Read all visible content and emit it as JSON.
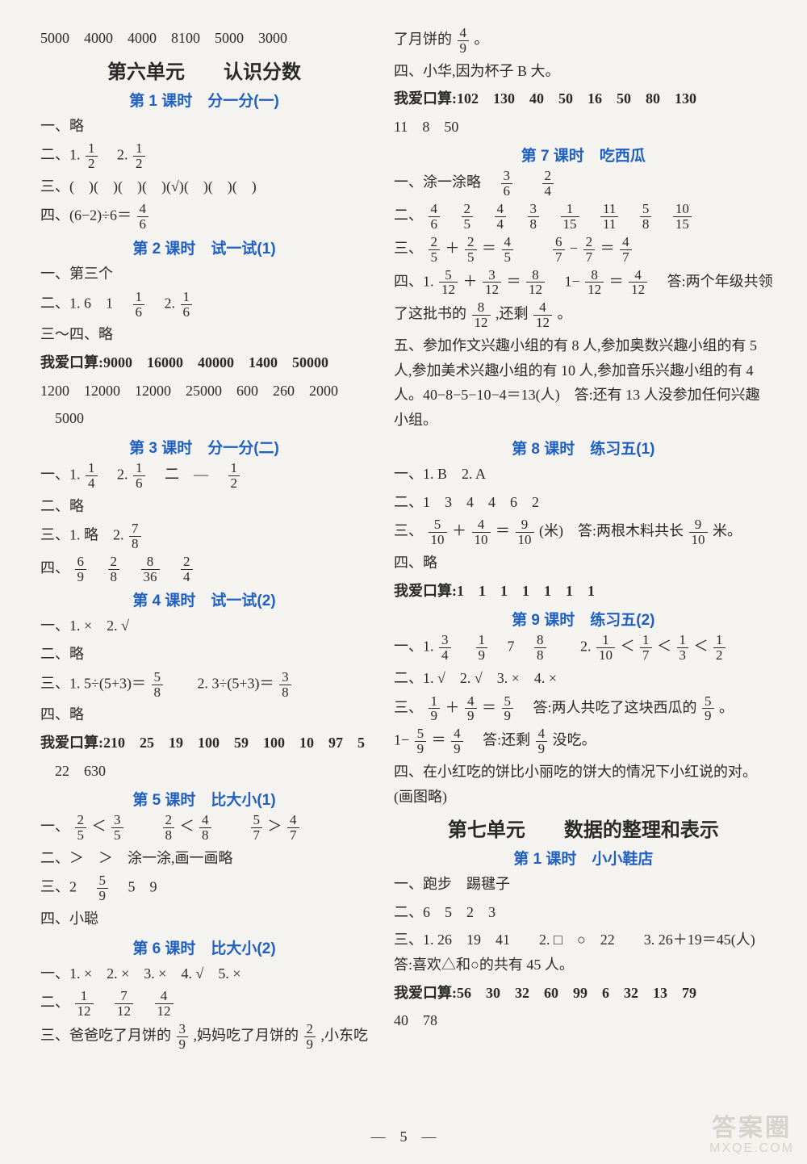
{
  "left": {
    "topRow": "5000　4000　4000　8100　5000　3000",
    "unit6": "第六单元　　认识分数",
    "l1": {
      "title": "第 1 课时　分一分(一)",
      "r1": "一、略",
      "r2_pre": "二、1. ",
      "r2_f1n": "1",
      "r2_f1d": "2",
      "r2_mid": "　2. ",
      "r2_f2n": "1",
      "r2_f2d": "2",
      "r3": "三、(　)(　)(　)(　)(√)(　)(　)(　)",
      "r4_pre": "四、(6−2)÷6＝",
      "r4_fn": "4",
      "r4_fd": "6"
    },
    "l2": {
      "title": "第 2 课时　试一试(1)",
      "r1": "一、第三个",
      "r2_pre": "二、1. 6　1　",
      "r2_f1n": "1",
      "r2_f1d": "6",
      "r2_mid": "　2. ",
      "r2_f2n": "1",
      "r2_f2d": "6",
      "r3": "三～四、略",
      "r4": "我爱口算:9000　16000　40000　1400　50000",
      "r5": "1200　12000　12000　25000　600　260　2000",
      "r6": "　5000"
    },
    "l3": {
      "title": "第 3 课时　分一分(二)",
      "r1_pre": "一、1. ",
      "r1_f1n": "1",
      "r1_f1d": "4",
      "r1_a": "　2. ",
      "r1_f2n": "1",
      "r1_f2d": "6",
      "r1_b": "　二　—　",
      "r1_f3n": "1",
      "r1_f3d": "2",
      "r2": "二、略",
      "r3_pre": "三、1. 略　2. ",
      "r3_fn": "7",
      "r3_fd": "8",
      "r4_pre": "四、",
      "r4_f1n": "6",
      "r4_f1d": "9",
      "r4_f2n": "2",
      "r4_f2d": "8",
      "r4_f3n": "8",
      "r4_f3d": "36",
      "r4_f4n": "2",
      "r4_f4d": "4"
    },
    "l4": {
      "title": "第 4 课时　试一试(2)",
      "r1": "一、1. ×　2. √",
      "r2": "二、略",
      "r3_pre": "三、1. 5÷(5+3)＝",
      "r3_f1n": "5",
      "r3_f1d": "8",
      "r3_mid": "　　2. 3÷(5+3)＝",
      "r3_f2n": "3",
      "r3_f2d": "8",
      "r4": "四、略",
      "r5": "我爱口算:210　25　19　100　59　100　10　97　5",
      "r6": "　22　630"
    },
    "l5": {
      "title": "第 5 课时　比大小(1)",
      "r1_pre": "一、",
      "r1_f1n": "2",
      "r1_f1d": "5",
      "r1_a": "＜",
      "r1_f2n": "3",
      "r1_f2d": "5",
      "r1_b": "　　",
      "r1_f3n": "2",
      "r1_f3d": "8",
      "r1_c": "＜",
      "r1_f4n": "4",
      "r1_f4d": "8",
      "r1_dd": "　　",
      "r1_f5n": "5",
      "r1_f5d": "7",
      "r1_e": "＞",
      "r1_f6n": "4",
      "r1_f6d": "7",
      "r2": "二、＞　＞　涂一涂,画一画略",
      "r3_pre": "三、2　",
      "r3_fn": "5",
      "r3_fd": "9",
      "r3_post": "　5　9",
      "r4": "四、小聪"
    },
    "l6": {
      "title": "第 6 课时　比大小(2)",
      "r1": "一、1. ×　2. ×　3. ×　4. √　5. ×",
      "r2_pre": "二、",
      "r2_f1n": "1",
      "r2_f1d": "12",
      "r2_f2n": "7",
      "r2_f2d": "12",
      "r2_f3n": "4",
      "r2_f3d": "12",
      "r3_pre": "三、爸爸吃了月饼的",
      "r3_f1n": "3",
      "r3_f1d": "9",
      "r3_mid": ",妈妈吃了月饼的",
      "r3_f2n": "2",
      "r3_f2d": "9",
      "r3_post": ",小东吃"
    }
  },
  "right": {
    "cont_pre": "了月饼的",
    "cont_fn": "4",
    "cont_fd": "9",
    "cont_post": "。",
    "r4": "四、小华,因为杯子 B 大。",
    "r5": "我爱口算:102　130　40　50　16　50　80　130",
    "r6": "11　8　50",
    "l7": {
      "title": "第 7 课时　吃西瓜",
      "r1_pre": "一、涂一涂略　",
      "r1_f1n": "3",
      "r1_f1d": "6",
      "r1_f2n": "2",
      "r1_f2d": "4",
      "r2_pre": "二、",
      "f": [
        [
          "4",
          "6"
        ],
        [
          "2",
          "5"
        ],
        [
          "4",
          "4"
        ],
        [
          "3",
          "8"
        ],
        [
          "1",
          "15"
        ],
        [
          "11",
          "11"
        ],
        [
          "5",
          "8"
        ],
        [
          "10",
          "15"
        ]
      ],
      "r3_pre": "三、",
      "r3_f1n": "2",
      "r3_f1d": "5",
      "r3_a": "＋",
      "r3_f2n": "2",
      "r3_f2d": "5",
      "r3_b": "＝",
      "r3_f3n": "4",
      "r3_f3d": "5",
      "r3_c": "　　",
      "r3_f4n": "6",
      "r3_f4d": "7",
      "r3_dlab": "−",
      "r3_f5n": "2",
      "r3_f5d": "7",
      "r3_e": "＝",
      "r3_f6n": "4",
      "r3_f6d": "7",
      "r4_pre": "四、1. ",
      "r4_f1n": "5",
      "r4_f1d": "12",
      "r4_a": "＋",
      "r4_f2n": "3",
      "r4_f2d": "12",
      "r4_b": "＝",
      "r4_f3n": "8",
      "r4_f3d": "12",
      "r4_c": "　1−",
      "r4_f4n": "8",
      "r4_f4d": "12",
      "r4_dlab": "＝",
      "r4_f5n": "4",
      "r4_f5d": "12",
      "r4_post": "　答:两个年级共领",
      "r5_pre": "了这批书的",
      "r5_f1n": "8",
      "r5_f1d": "12",
      "r5_mid": ",还剩",
      "r5_f2n": "4",
      "r5_f2d": "12",
      "r5_post": "。",
      "r6": "五、参加作文兴趣小组的有 8 人,参加奥数兴趣小组的有 5 人,参加美术兴趣小组的有 10 人,参加音乐兴趣小组的有 4 人。40−8−5−10−4＝13(人)　答:还有 13 人没参加任何兴趣小组。"
    },
    "l8": {
      "title": "第 8 课时　练习五(1)",
      "r1": "一、1. B　2. A",
      "r2": "二、1　3　4　4　6　2",
      "r3_pre": "三、",
      "r3_f1n": "5",
      "r3_f1d": "10",
      "r3_a": "＋",
      "r3_f2n": "4",
      "r3_f2d": "10",
      "r3_b": "＝",
      "r3_f3n": "9",
      "r3_f3d": "10",
      "r3_mid": "(米)　答:两根木料共长",
      "r3_f4n": "9",
      "r3_f4d": "10",
      "r3_post": "米。",
      "r4": "四、略",
      "r5": "我爱口算:1　1　1　1　1　1　1"
    },
    "l9": {
      "title": "第 9 课时　练习五(2)",
      "r1_pre": "一、1. ",
      "r1_f1n": "3",
      "r1_f1d": "4",
      "r1_a": "　",
      "r1_f2n": "1",
      "r1_f2d": "9",
      "r1_b": "　7　",
      "r1_f3n": "8",
      "r1_f3d": "8",
      "r1_c": "　　2. ",
      "r1_f4n": "1",
      "r1_f4d": "10",
      "r1_dlab": "＜",
      "r1_f5n": "1",
      "r1_f5d": "7",
      "r1_e": "＜",
      "r1_f6n": "1",
      "r1_f6d": "3",
      "r1_g": "＜",
      "r1_f7n": "1",
      "r1_f7d": "2",
      "r2": "二、1. √　2. √　3. ×　4. ×",
      "r3_pre": "三、",
      "r3_f1n": "1",
      "r3_f1d": "9",
      "r3_a": "＋",
      "r3_f2n": "4",
      "r3_f2d": "9",
      "r3_b": "＝",
      "r3_f3n": "5",
      "r3_f3d": "9",
      "r3_mid": "　答:两人共吃了这块西瓜的",
      "r3_f4n": "5",
      "r3_f4d": "9",
      "r3_post": "。",
      "r4_pre": "1−",
      "r4_f1n": "5",
      "r4_f1d": "9",
      "r4_a": "＝",
      "r4_f2n": "4",
      "r4_f2d": "9",
      "r4_mid": "　答:还剩",
      "r4_f3n": "4",
      "r4_f3d": "9",
      "r4_post": "没吃。",
      "r5": "四、在小红吃的饼比小丽吃的饼大的情况下小红说的对。(画图略)"
    },
    "unit7": "第七单元　　数据的整理和表示",
    "l71": {
      "title": "第 1 课时　小小鞋店",
      "r1": "一、跑步　踢毽子",
      "r2": "二、6　5　2　3",
      "r3": "三、1. 26　19　41　　2. □　○　22　　3. 26＋19＝45(人)　答:喜欢△和○的共有 45 人。",
      "r4": "我爱口算:56　30　32　60　99　6　32　13　79",
      "r5": "40　78"
    }
  },
  "pagenum": "—　5　—",
  "watermark": {
    "w1": "答案圈",
    "w2": "MXQE.COM"
  }
}
